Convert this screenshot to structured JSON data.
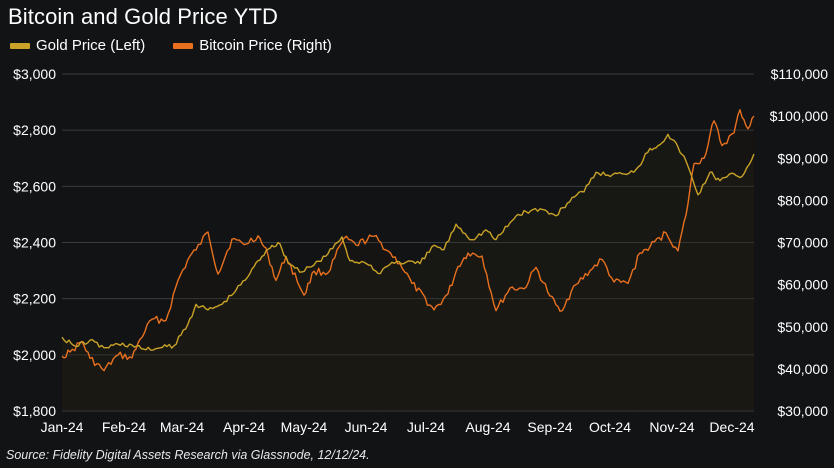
{
  "chart_data": {
    "type": "area",
    "title": "Bitcoin and Gold Price YTD",
    "source": "Source: Fidelity Digital Assets Research via Glassnode, 12/12/24.",
    "legend_position": "top-left",
    "grid": true,
    "x_ticks": [
      "Jan-24",
      "Feb-24",
      "Mar-24",
      "Apr-24",
      "May-24",
      "Jun-24",
      "Jul-24",
      "Aug-24",
      "Sep-24",
      "Oct-24",
      "Nov-24",
      "Dec-24"
    ],
    "y_left": {
      "ylim": [
        1800,
        3000
      ],
      "ticks": [
        1800,
        2000,
        2200,
        2400,
        2600,
        2800,
        3000
      ],
      "tick_labels": [
        "$1,800",
        "$2,000",
        "$2,200",
        "$2,400",
        "$2,600",
        "$2,800",
        "$3,000"
      ]
    },
    "y_right": {
      "ylim": [
        30000,
        110000
      ],
      "ticks": [
        30000,
        40000,
        50000,
        60000,
        70000,
        80000,
        90000,
        100000,
        110000
      ],
      "tick_labels": [
        "$30,000",
        "$40,000",
        "$50,000",
        "$60,000",
        "$70,000",
        "$80,000",
        "$90,000",
        "$100,000",
        "$110,000"
      ]
    },
    "x_domain": [
      "2024-01-01",
      "2024-12-12"
    ],
    "series": [
      {
        "name": "Gold Price (Left)",
        "axis": "left",
        "color": "#c9a227",
        "points": [
          [
            "2024-01-01",
            2063
          ],
          [
            "2024-01-08",
            2030
          ],
          [
            "2024-01-15",
            2052
          ],
          [
            "2024-01-22",
            2025
          ],
          [
            "2024-01-29",
            2038
          ],
          [
            "2024-02-05",
            2035
          ],
          [
            "2024-02-12",
            2018
          ],
          [
            "2024-02-19",
            2025
          ],
          [
            "2024-02-26",
            2032
          ],
          [
            "2024-03-04",
            2110
          ],
          [
            "2024-03-08",
            2180
          ],
          [
            "2024-03-14",
            2160
          ],
          [
            "2024-03-21",
            2180
          ],
          [
            "2024-03-28",
            2230
          ],
          [
            "2024-04-04",
            2290
          ],
          [
            "2024-04-08",
            2335
          ],
          [
            "2024-04-12",
            2370
          ],
          [
            "2024-04-15",
            2390
          ],
          [
            "2024-04-19",
            2395
          ],
          [
            "2024-04-23",
            2330
          ],
          [
            "2024-04-30",
            2295
          ],
          [
            "2024-05-06",
            2320
          ],
          [
            "2024-05-13",
            2360
          ],
          [
            "2024-05-20",
            2420
          ],
          [
            "2024-05-24",
            2335
          ],
          [
            "2024-05-31",
            2330
          ],
          [
            "2024-06-07",
            2290
          ],
          [
            "2024-06-14",
            2330
          ],
          [
            "2024-06-21",
            2330
          ],
          [
            "2024-06-28",
            2325
          ],
          [
            "2024-07-05",
            2390
          ],
          [
            "2024-07-10",
            2375
          ],
          [
            "2024-07-16",
            2465
          ],
          [
            "2024-07-24",
            2410
          ],
          [
            "2024-07-31",
            2445
          ],
          [
            "2024-08-05",
            2410
          ],
          [
            "2024-08-12",
            2470
          ],
          [
            "2024-08-16",
            2500
          ],
          [
            "2024-08-20",
            2510
          ],
          [
            "2024-08-27",
            2520
          ],
          [
            "2024-09-04",
            2495
          ],
          [
            "2024-09-12",
            2560
          ],
          [
            "2024-09-18",
            2580
          ],
          [
            "2024-09-24",
            2650
          ],
          [
            "2024-09-30",
            2640
          ],
          [
            "2024-10-07",
            2645
          ],
          [
            "2024-10-14",
            2660
          ],
          [
            "2024-10-21",
            2735
          ],
          [
            "2024-10-25",
            2745
          ],
          [
            "2024-10-30",
            2785
          ],
          [
            "2024-11-04",
            2740
          ],
          [
            "2024-11-08",
            2690
          ],
          [
            "2024-11-14",
            2570
          ],
          [
            "2024-11-20",
            2650
          ],
          [
            "2024-11-25",
            2620
          ],
          [
            "2024-12-02",
            2645
          ],
          [
            "2024-12-06",
            2635
          ],
          [
            "2024-12-12",
            2715
          ]
        ]
      },
      {
        "name": "Bitcoin Price (Right)",
        "axis": "right",
        "color": "#e8701f",
        "points": [
          [
            "2024-01-01",
            43000
          ],
          [
            "2024-01-05",
            44000
          ],
          [
            "2024-01-11",
            46500
          ],
          [
            "2024-01-15",
            42500
          ],
          [
            "2024-01-22",
            39600
          ],
          [
            "2024-01-29",
            43300
          ],
          [
            "2024-02-05",
            42600
          ],
          [
            "2024-02-09",
            47000
          ],
          [
            "2024-02-15",
            51800
          ],
          [
            "2024-02-22",
            51500
          ],
          [
            "2024-02-28",
            61000
          ],
          [
            "2024-03-05",
            66800
          ],
          [
            "2024-03-08",
            68200
          ],
          [
            "2024-03-14",
            72500
          ],
          [
            "2024-03-19",
            62500
          ],
          [
            "2024-03-26",
            70800
          ],
          [
            "2024-04-01",
            69500
          ],
          [
            "2024-04-08",
            71600
          ],
          [
            "2024-04-13",
            67000
          ],
          [
            "2024-04-17",
            61000
          ],
          [
            "2024-04-22",
            66700
          ],
          [
            "2024-05-01",
            57500
          ],
          [
            "2024-05-06",
            63200
          ],
          [
            "2024-05-13",
            62800
          ],
          [
            "2024-05-21",
            71000
          ],
          [
            "2024-05-27",
            69400
          ],
          [
            "2024-06-05",
            71500
          ],
          [
            "2024-06-12",
            68000
          ],
          [
            "2024-06-18",
            65000
          ],
          [
            "2024-06-24",
            60300
          ],
          [
            "2024-07-05",
            54000
          ],
          [
            "2024-07-12",
            57800
          ],
          [
            "2024-07-17",
            64300
          ],
          [
            "2024-07-22",
            67500
          ],
          [
            "2024-07-29",
            66800
          ],
          [
            "2024-08-05",
            53800
          ],
          [
            "2024-08-12",
            59200
          ],
          [
            "2024-08-19",
            59000
          ],
          [
            "2024-08-25",
            64100
          ],
          [
            "2024-09-01",
            57300
          ],
          [
            "2024-09-06",
            53700
          ],
          [
            "2024-09-14",
            60000
          ],
          [
            "2024-09-21",
            63300
          ],
          [
            "2024-09-27",
            66000
          ],
          [
            "2024-10-03",
            60600
          ],
          [
            "2024-10-10",
            60300
          ],
          [
            "2024-10-16",
            67500
          ],
          [
            "2024-10-21",
            69000
          ],
          [
            "2024-10-29",
            72300
          ],
          [
            "2024-11-04",
            68000
          ],
          [
            "2024-11-08",
            76500
          ],
          [
            "2024-11-12",
            88700
          ],
          [
            "2024-11-17",
            90000
          ],
          [
            "2024-11-22",
            98900
          ],
          [
            "2024-11-26",
            93000
          ],
          [
            "2024-12-02",
            96000
          ],
          [
            "2024-12-05",
            101500
          ],
          [
            "2024-12-09",
            97000
          ],
          [
            "2024-12-12",
            100000
          ]
        ]
      }
    ]
  }
}
